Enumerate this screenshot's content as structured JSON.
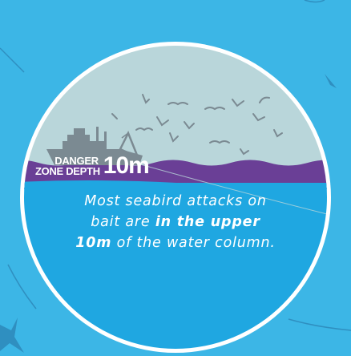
{
  "colors": {
    "background": "#3cb6e6",
    "sky": "#b9d6da",
    "water": "#1fa7e1",
    "danger_band": "#6a3f96",
    "circle_border": "#ffffff",
    "silhouette": "#7b8a92"
  },
  "icons": [
    "ship-icon",
    "seabird-icon"
  ],
  "danger_label": {
    "line1": "DANGER",
    "line2": "ZONE DEPTH",
    "depth": "10m"
  },
  "caption": {
    "part1": "Most seabird attacks on bait are",
    "emphasis": "in the upper 10m",
    "part2": "of the water column."
  }
}
